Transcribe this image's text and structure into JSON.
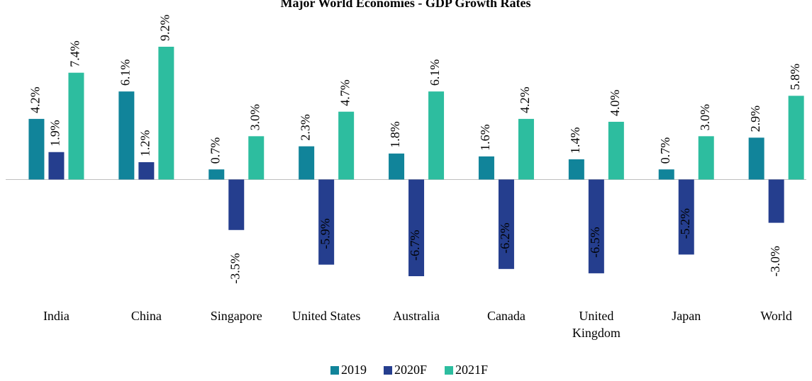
{
  "chart_data": {
    "type": "bar",
    "title": "Major World Economies - GDP Growth Rates",
    "categories": [
      "India",
      "China",
      "Singapore",
      "United States",
      "Australia",
      "Canada",
      "United Kingdom",
      "Japan",
      "World"
    ],
    "series": [
      {
        "name": "2019",
        "color": "#11849a",
        "values": [
          4.2,
          6.1,
          0.7,
          2.3,
          1.8,
          1.6,
          1.4,
          0.7,
          2.9
        ],
        "value_labels": [
          "4.2%",
          "6.1%",
          "0.7%",
          "2.3%",
          "1.8%",
          "1.6%",
          "1.4%",
          "0.7%",
          "2.9%"
        ]
      },
      {
        "name": "2020F",
        "color": "#253e8e",
        "values": [
          1.9,
          1.2,
          -3.5,
          -5.9,
          -6.7,
          -6.2,
          -6.5,
          -5.2,
          -3.0
        ],
        "value_labels": [
          "1.9%",
          "1.2%",
          "-3.5%",
          "-5.9%",
          "-6.7%",
          "-6.2%",
          "-6.5%",
          "-5.2%",
          "-3.0%"
        ]
      },
      {
        "name": "2021F",
        "color": "#2dbd9f",
        "values": [
          7.4,
          9.2,
          3.0,
          4.7,
          6.1,
          4.2,
          4.0,
          3.0,
          5.8
        ],
        "value_labels": [
          "7.4%",
          "9.2%",
          "3.0%",
          "4.7%",
          "6.1%",
          "4.2%",
          "4.0%",
          "3.0%",
          "5.8%"
        ]
      }
    ],
    "legend": "bottom"
  }
}
